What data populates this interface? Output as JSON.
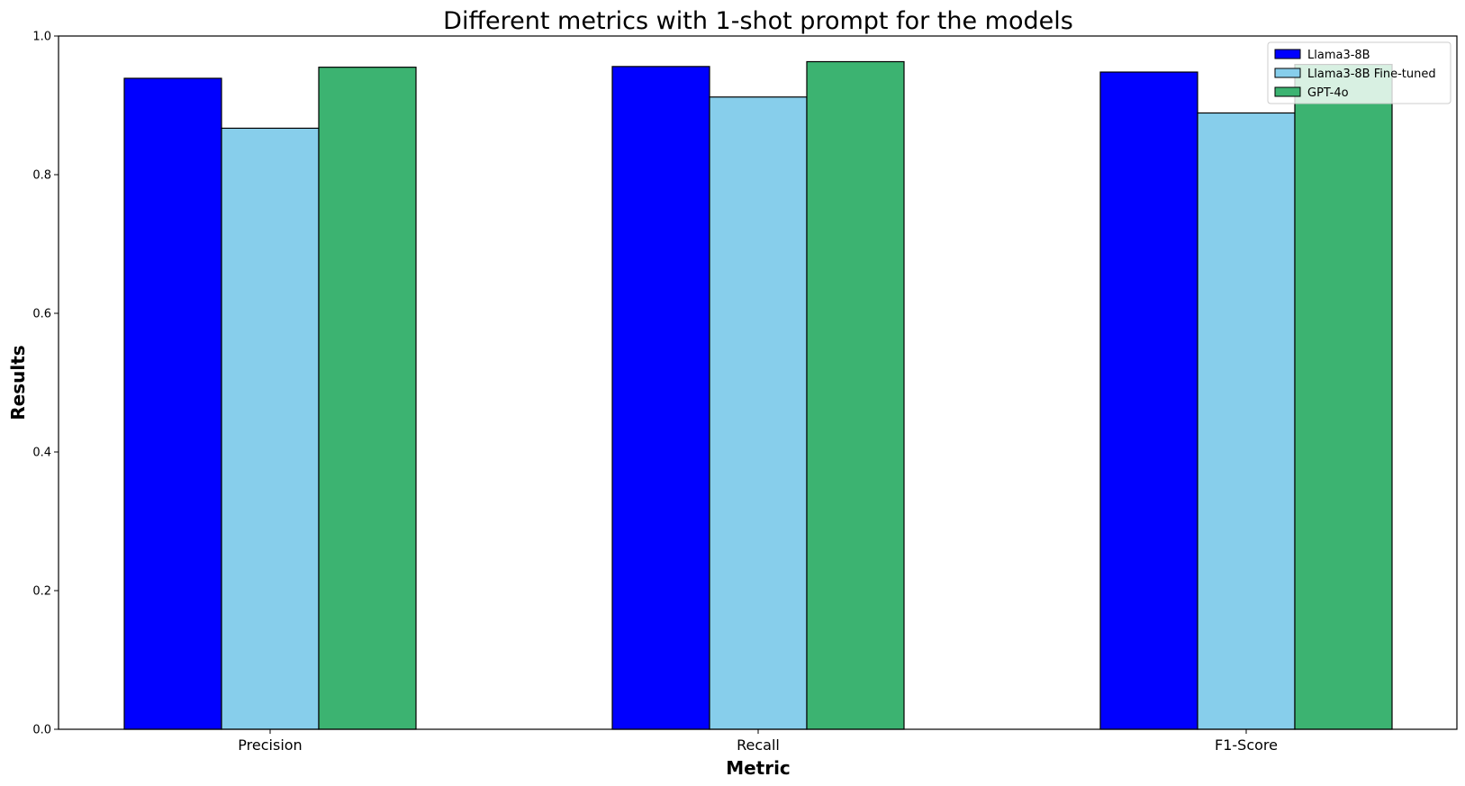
{
  "chart_data": {
    "type": "bar",
    "title": "Different metrics with 1-shot prompt for the models",
    "xlabel": "Metric",
    "ylabel": "Results",
    "ylim": [
      0,
      1.0
    ],
    "yticks": [
      "0.0",
      "0.2",
      "0.4",
      "0.6",
      "0.8",
      "1.0"
    ],
    "categories": [
      "Precision",
      "Recall",
      "F1-Score"
    ],
    "series": [
      {
        "name": "Llama3-8B",
        "color": "#0000ff",
        "values": [
          0.939,
          0.956,
          0.948
        ]
      },
      {
        "name": "Llama3-8B Fine-tuned",
        "color": "#87ceeb",
        "values": [
          0.867,
          0.912,
          0.889
        ]
      },
      {
        "name": "GPT-4o",
        "color": "#3cb371",
        "values": [
          0.955,
          0.963,
          0.959
        ]
      }
    ],
    "legend": "top-right",
    "grid": false
  }
}
